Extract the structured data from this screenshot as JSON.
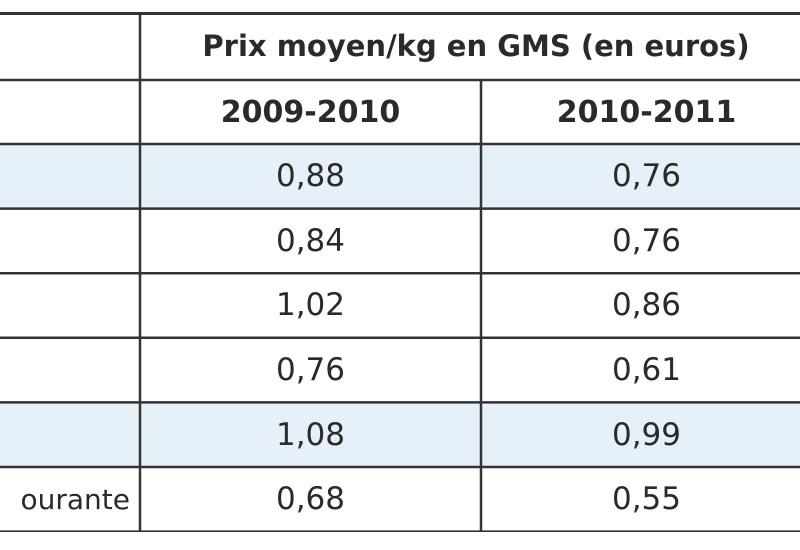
{
  "table": {
    "title": "Prix moyen/kg en GMS (en euros)",
    "columns": [
      "2009-2010",
      "2010-2011"
    ],
    "rows": [
      {
        "label": "",
        "values": [
          "0,88",
          "0,76"
        ],
        "shaded": true
      },
      {
        "label": "",
        "values": [
          "0,84",
          "0,76"
        ],
        "shaded": false
      },
      {
        "label": "",
        "values": [
          "1,02",
          "0,86"
        ],
        "shaded": false
      },
      {
        "label": "",
        "values": [
          "0,76",
          "0,61"
        ],
        "shaded": false
      },
      {
        "label": "",
        "values": [
          "1,08",
          "0,99"
        ],
        "shaded": true
      },
      {
        "label": "ourante",
        "values": [
          "0,68",
          "0,55"
        ],
        "shaded": false
      }
    ],
    "colors": {
      "border": "#333333",
      "shade": "#e6f0f8",
      "background": "#ffffff",
      "text": "#2a2a2a"
    }
  }
}
